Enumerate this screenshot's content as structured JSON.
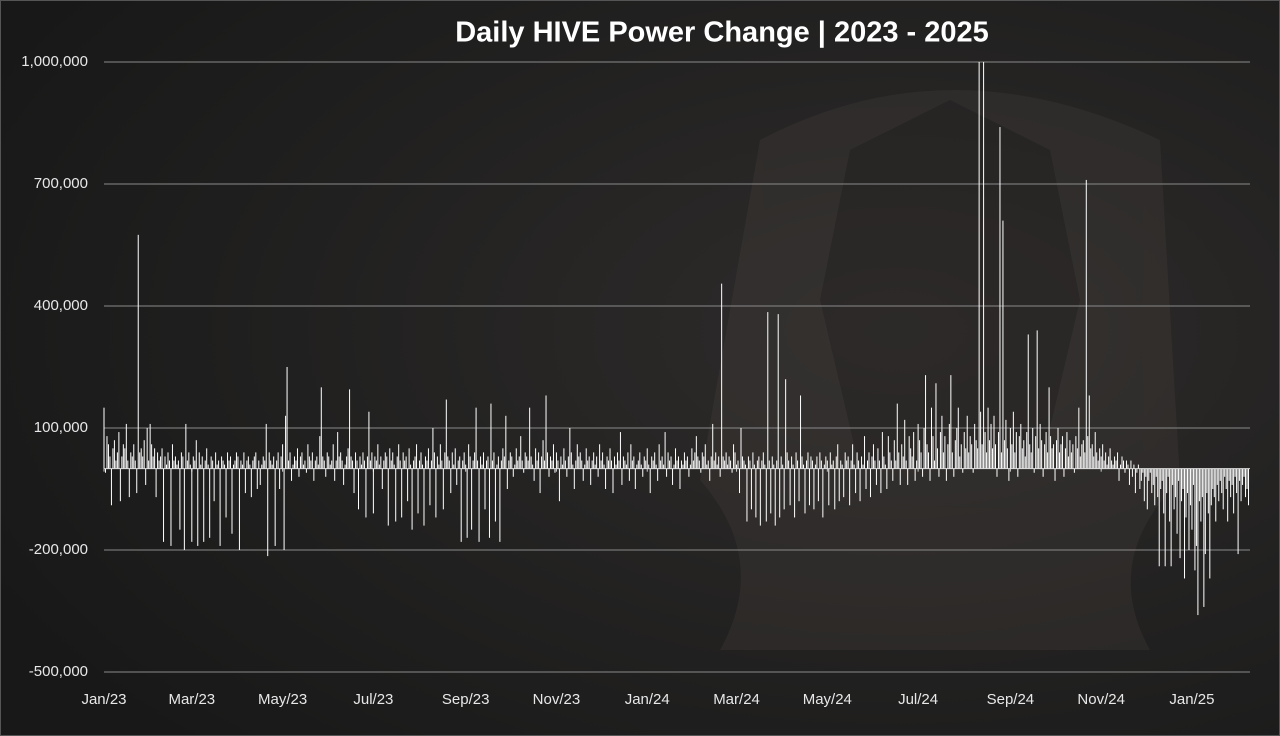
{
  "chart_data": {
    "type": "bar",
    "title": "Daily HIVE Power Change | 2023 - 2025",
    "color": "#ffffff",
    "grid": true,
    "xlim": [
      0,
      770
    ],
    "xticks": [
      {
        "value": 0,
        "label": "Jan/23"
      },
      {
        "value": 59,
        "label": "Mar/23"
      },
      {
        "value": 120,
        "label": "May/23"
      },
      {
        "value": 181,
        "label": "Jul/23"
      },
      {
        "value": 243,
        "label": "Sep/23"
      },
      {
        "value": 304,
        "label": "Nov/23"
      },
      {
        "value": 365,
        "label": "Jan/24"
      },
      {
        "value": 425,
        "label": "Mar/24"
      },
      {
        "value": 486,
        "label": "May/24"
      },
      {
        "value": 547,
        "label": "Jul/24"
      },
      {
        "value": 609,
        "label": "Sep/24"
      },
      {
        "value": 670,
        "label": "Nov/24"
      },
      {
        "value": 731,
        "label": "Jan/25"
      }
    ],
    "ylim": [
      -500000,
      1000000
    ],
    "yticks": [
      {
        "value": -500000,
        "label": "-500,000"
      },
      {
        "value": -200000,
        "label": "-200,000"
      },
      {
        "value": 100000,
        "label": "100,000"
      },
      {
        "value": 400000,
        "label": "400,000"
      },
      {
        "value": 700000,
        "label": "700,000"
      },
      {
        "value": 1000000,
        "label": "1,000,000"
      }
    ],
    "values": [
      150000,
      -10000,
      80000,
      60000,
      30000,
      -90000,
      50000,
      70000,
      20000,
      40000,
      90000,
      -80000,
      30000,
      60000,
      50000,
      110000,
      20000,
      -70000,
      40000,
      30000,
      60000,
      20000,
      -60000,
      575000,
      40000,
      50000,
      30000,
      70000,
      -40000,
      100000,
      20000,
      110000,
      60000,
      30000,
      50000,
      -70000,
      40000,
      20000,
      30000,
      50000,
      -180000,
      30000,
      10000,
      40000,
      20000,
      -190000,
      60000,
      20000,
      30000,
      10000,
      20000,
      -150000,
      40000,
      30000,
      -200000,
      110000,
      20000,
      40000,
      10000,
      -180000,
      30000,
      20000,
      70000,
      -190000,
      40000,
      10000,
      30000,
      -180000,
      20000,
      50000,
      10000,
      -170000,
      30000,
      20000,
      -80000,
      40000,
      10000,
      20000,
      -190000,
      30000,
      20000,
      10000,
      -120000,
      40000,
      20000,
      30000,
      -160000,
      10000,
      20000,
      40000,
      30000,
      -200000,
      20000,
      10000,
      40000,
      -60000,
      20000,
      30000,
      10000,
      -70000,
      20000,
      30000,
      40000,
      -50000,
      20000,
      -40000,
      10000,
      30000,
      20000,
      110000,
      -215000,
      40000,
      20000,
      10000,
      30000,
      -190000,
      20000,
      40000,
      -50000,
      30000,
      60000,
      -200000,
      130000,
      250000,
      20000,
      40000,
      -30000,
      10000,
      30000,
      20000,
      50000,
      -20000,
      30000,
      40000,
      10000,
      20000,
      -10000,
      60000,
      30000,
      20000,
      40000,
      -30000,
      20000,
      30000,
      10000,
      80000,
      200000,
      30000,
      20000,
      -20000,
      40000,
      30000,
      10000,
      20000,
      60000,
      -30000,
      20000,
      90000,
      30000,
      40000,
      20000,
      -40000,
      10000,
      30000,
      50000,
      195000,
      30000,
      20000,
      -60000,
      40000,
      20000,
      -100000,
      30000,
      10000,
      40000,
      20000,
      -120000,
      30000,
      140000,
      20000,
      40000,
      -110000,
      30000,
      20000,
      60000,
      10000,
      30000,
      -50000,
      20000,
      40000,
      30000,
      -140000,
      50000,
      20000,
      40000,
      10000,
      -130000,
      30000,
      60000,
      20000,
      -120000,
      40000,
      20000,
      30000,
      -80000,
      50000,
      10000,
      -150000,
      20000,
      30000,
      60000,
      -110000,
      20000,
      40000,
      10000,
      -140000,
      30000,
      20000,
      50000,
      -90000,
      20000,
      100000,
      40000,
      -120000,
      30000,
      10000,
      60000,
      20000,
      -100000,
      40000,
      170000,
      30000,
      20000,
      -60000,
      40000,
      10000,
      50000,
      -40000,
      20000,
      30000,
      -180000,
      20000,
      40000,
      10000,
      -170000,
      60000,
      30000,
      -150000,
      20000,
      40000,
      150000,
      20000,
      -180000,
      30000,
      10000,
      40000,
      -100000,
      20000,
      30000,
      -170000,
      160000,
      20000,
      40000,
      -130000,
      10000,
      30000,
      -180000,
      20000,
      50000,
      30000,
      130000,
      -50000,
      20000,
      40000,
      30000,
      -20000,
      10000,
      50000,
      20000,
      30000,
      80000,
      20000,
      -10000,
      40000,
      30000,
      20000,
      150000,
      30000,
      10000,
      -30000,
      50000,
      20000,
      40000,
      -60000,
      30000,
      70000,
      20000,
      180000,
      40000,
      -20000,
      30000,
      20000,
      60000,
      -10000,
      40000,
      20000,
      -80000,
      30000,
      10000,
      50000,
      20000,
      -20000,
      30000,
      100000,
      40000,
      10000,
      -50000,
      20000,
      60000,
      30000,
      40000,
      20000,
      -30000,
      10000,
      50000,
      20000,
      30000,
      -40000,
      20000,
      40000,
      10000,
      30000,
      -20000,
      60000,
      20000,
      40000,
      10000,
      -50000,
      30000,
      20000,
      50000,
      20000,
      -60000,
      30000,
      10000,
      40000,
      20000,
      90000,
      -40000,
      30000,
      20000,
      10000,
      40000,
      -30000,
      60000,
      20000,
      30000,
      -50000,
      10000,
      20000,
      40000,
      10000,
      -20000,
      30000,
      20000,
      50000,
      10000,
      -60000,
      30000,
      20000,
      40000,
      10000,
      -30000,
      60000,
      20000,
      30000,
      10000,
      90000,
      -20000,
      40000,
      20000,
      30000,
      -40000,
      10000,
      50000,
      20000,
      30000,
      -50000,
      20000,
      10000,
      40000,
      20000,
      30000,
      -20000,
      10000,
      50000,
      20000,
      40000,
      80000,
      30000,
      20000,
      -10000,
      40000,
      30000,
      60000,
      10000,
      20000,
      -30000,
      30000,
      110000,
      20000,
      40000,
      10000,
      30000,
      -20000,
      455000,
      30000,
      20000,
      40000,
      10000,
      30000,
      20000,
      -10000,
      60000,
      40000,
      10000,
      20000,
      -60000,
      100000,
      30000,
      20000,
      10000,
      -130000,
      30000,
      20000,
      -100000,
      40000,
      10000,
      -120000,
      20000,
      30000,
      -140000,
      20000,
      40000,
      10000,
      -130000,
      385000,
      20000,
      -110000,
      30000,
      10000,
      -140000,
      20000,
      380000,
      -120000,
      30000,
      10000,
      -100000,
      220000,
      40000,
      20000,
      -90000,
      30000,
      10000,
      -120000,
      40000,
      20000,
      -80000,
      180000,
      30000,
      10000,
      -110000,
      20000,
      40000,
      -90000,
      30000,
      20000,
      -100000,
      10000,
      30000,
      -80000,
      40000,
      20000,
      -120000,
      10000,
      30000,
      20000,
      -90000,
      40000,
      10000,
      20000,
      -100000,
      30000,
      60000,
      -80000,
      20000,
      10000,
      -70000,
      40000,
      20000,
      30000,
      -90000,
      20000,
      60000,
      10000,
      -60000,
      40000,
      20000,
      -80000,
      30000,
      10000,
      80000,
      -50000,
      20000,
      40000,
      -70000,
      30000,
      60000,
      20000,
      -40000,
      50000,
      20000,
      -60000,
      90000,
      30000,
      10000,
      -50000,
      80000,
      40000,
      20000,
      -30000,
      70000,
      20000,
      160000,
      40000,
      -40000,
      60000,
      30000,
      120000,
      20000,
      -40000,
      80000,
      50000,
      30000,
      90000,
      -30000,
      20000,
      110000,
      70000,
      40000,
      -20000,
      100000,
      230000,
      60000,
      40000,
      -30000,
      150000,
      80000,
      20000,
      210000,
      50000,
      -20000,
      90000,
      130000,
      40000,
      80000,
      -30000,
      60000,
      110000,
      230000,
      40000,
      -20000,
      70000,
      100000,
      150000,
      30000,
      60000,
      -10000,
      90000,
      50000,
      130000,
      40000,
      80000,
      60000,
      -10000,
      110000,
      70000,
      50000,
      1000000,
      140000,
      60000,
      1000000,
      90000,
      40000,
      150000,
      70000,
      110000,
      50000,
      130000,
      60000,
      -20000,
      90000,
      840000,
      40000,
      610000,
      70000,
      120000,
      50000,
      -30000,
      100000,
      60000,
      140000,
      40000,
      90000,
      -20000,
      80000,
      110000,
      50000,
      70000,
      30000,
      90000,
      330000,
      60000,
      40000,
      100000,
      -10000,
      80000,
      340000,
      50000,
      110000,
      70000,
      -20000,
      60000,
      90000,
      40000,
      200000,
      80000,
      50000,
      60000,
      -30000,
      70000,
      100000,
      40000,
      60000,
      80000,
      -20000,
      50000,
      90000,
      30000,
      70000,
      40000,
      60000,
      -10000,
      80000,
      50000,
      150000,
      30000,
      60000,
      70000,
      40000,
      710000,
      80000,
      180000,
      50000,
      60000,
      30000,
      90000,
      40000,
      20000,
      50000,
      30000,
      60000,
      20000,
      40000,
      10000,
      30000,
      50000,
      20000,
      10000,
      30000,
      20000,
      40000,
      -30000,
      10000,
      30000,
      20000,
      -10000,
      20000,
      10000,
      -40000,
      20000,
      -20000,
      10000,
      -60000,
      -10000,
      10000,
      -50000,
      -30000,
      -10000,
      -80000,
      -20000,
      -100000,
      -30000,
      -10000,
      -60000,
      -40000,
      -90000,
      -20000,
      -70000,
      -240000,
      -50000,
      -30000,
      -110000,
      -240000,
      -60000,
      -20000,
      -130000,
      -240000,
      -40000,
      -100000,
      -70000,
      -160000,
      -30000,
      -220000,
      -80000,
      -50000,
      -270000,
      -120000,
      -60000,
      -200000,
      -90000,
      -150000,
      -40000,
      -250000,
      -190000,
      -360000,
      -80000,
      -130000,
      -70000,
      -340000,
      -210000,
      -60000,
      -110000,
      -270000,
      -90000,
      -50000,
      -70000,
      -130000,
      -40000,
      -80000,
      -30000,
      -60000,
      -100000,
      -20000,
      -50000,
      -130000,
      -30000,
      -70000,
      -40000,
      -110000,
      -20000,
      -60000,
      -210000,
      -30000,
      -80000,
      -40000,
      -20000,
      -70000,
      -50000,
      -90000
    ]
  }
}
